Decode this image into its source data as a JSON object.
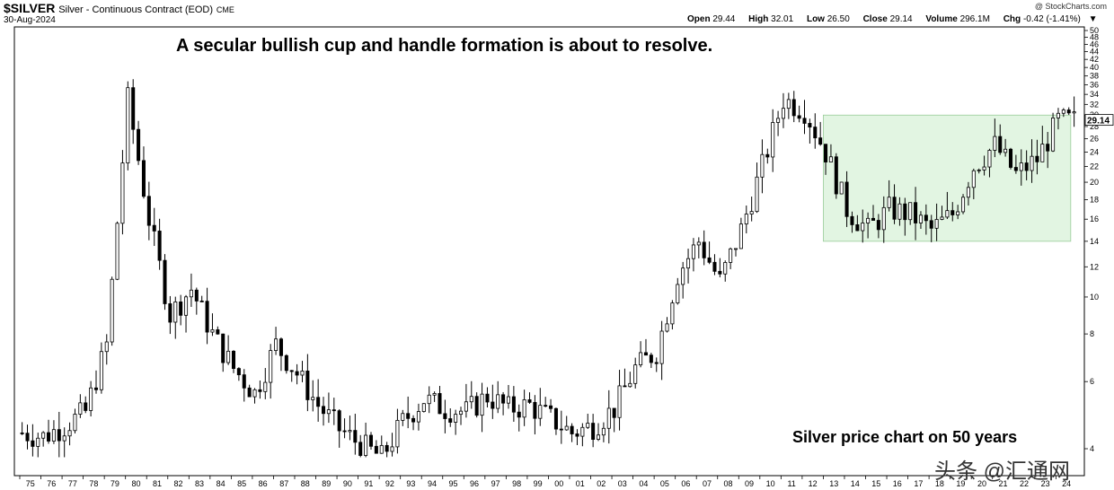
{
  "header": {
    "symbol": "$SILVER",
    "description": "Silver - Continuous Contract (EOD)",
    "exchange": "CME",
    "date": "30-Aug-2024",
    "brand": "@ StockCharts.com",
    "open_label": "Open",
    "open_value": "29.44",
    "high_label": "High",
    "high_value": "32.01",
    "low_label": "Low",
    "low_value": "26.50",
    "close_label": "Close",
    "close_value": "29.14",
    "volume_label": "Volume",
    "volume_value": "296.1M",
    "chg_label": "Chg",
    "chg_value": "-0.42 (-1.41%)",
    "chg_arrow": "▼"
  },
  "annotations": {
    "top": "A secular bullish cup and handle formation is about to resolve.",
    "bottom": "Silver price chart on 50 years"
  },
  "watermark": {
    "text": "头条 @汇通网"
  },
  "chart_data": {
    "type": "candlestick",
    "title": "",
    "y_scale": "log",
    "ylim": [
      4,
      50
    ],
    "y_ticks": [
      50,
      48,
      46,
      44,
      42,
      40,
      38,
      36,
      34,
      32,
      30,
      28,
      26,
      24,
      22,
      20,
      18,
      16,
      14,
      12,
      10,
      8,
      6,
      4
    ],
    "x_labels": [
      "75",
      "76",
      "77",
      "78",
      "79",
      "80",
      "81",
      "82",
      "83",
      "84",
      "85",
      "86",
      "87",
      "88",
      "89",
      "90",
      "91",
      "92",
      "93",
      "94",
      "95",
      "96",
      "97",
      "98",
      "99",
      "00",
      "01",
      "02",
      "03",
      "04",
      "05",
      "06",
      "07",
      "08",
      "09",
      "10",
      "11",
      "12",
      "13",
      "14",
      "15",
      "16",
      "17",
      "18",
      "19",
      "20",
      "21",
      "22",
      "23",
      "24"
    ],
    "last_price": "29.14",
    "highlight_zone": {
      "y_from": 14,
      "y_to": 30,
      "x_from": "13",
      "x_to": "24",
      "color": "#e2f5e2"
    },
    "colors": {
      "up": "#ffffff",
      "down": "#000000",
      "outline": "#000000",
      "zone": "#e2f5e2",
      "grid": "#dddddd"
    },
    "anchors": [
      [
        "75",
        4.4
      ],
      [
        "76",
        4.3
      ],
      [
        "77",
        4.6
      ],
      [
        "78",
        5.0
      ],
      [
        "79",
        7.5
      ],
      [
        "80",
        33
      ],
      [
        "81",
        16
      ],
      [
        "82",
        9
      ],
      [
        "83",
        10.5
      ],
      [
        "84",
        8
      ],
      [
        "85",
        6.5
      ],
      [
        "86",
        5.6
      ],
      [
        "87",
        7.5
      ],
      [
        "88",
        6.3
      ],
      [
        "89",
        5.2
      ],
      [
        "90",
        4.5
      ],
      [
        "91",
        4.1
      ],
      [
        "92",
        3.8
      ],
      [
        "93",
        4.7
      ],
      [
        "94",
        5.4
      ],
      [
        "95",
        5.1
      ],
      [
        "96",
        5.0
      ],
      [
        "97",
        5.5
      ],
      [
        "98",
        5.1
      ],
      [
        "99",
        5.2
      ],
      [
        "00",
        4.8
      ],
      [
        "01",
        4.4
      ],
      [
        "02",
        4.6
      ],
      [
        "03",
        5.1
      ],
      [
        "04",
        6.5
      ],
      [
        "05",
        7.2
      ],
      [
        "06",
        11.5
      ],
      [
        "07",
        14
      ],
      [
        "08",
        11
      ],
      [
        "09",
        15
      ],
      [
        "10",
        22
      ],
      [
        "11",
        33
      ],
      [
        "12",
        31
      ],
      [
        "13",
        24
      ],
      [
        "14",
        17
      ],
      [
        "15",
        15
      ],
      [
        "16",
        17
      ],
      [
        "17",
        16.5
      ],
      [
        "18",
        15
      ],
      [
        "19",
        16.5
      ],
      [
        "20",
        22
      ],
      [
        "21",
        25
      ],
      [
        "22",
        21
      ],
      [
        "23",
        23
      ],
      [
        "24",
        29
      ]
    ]
  }
}
